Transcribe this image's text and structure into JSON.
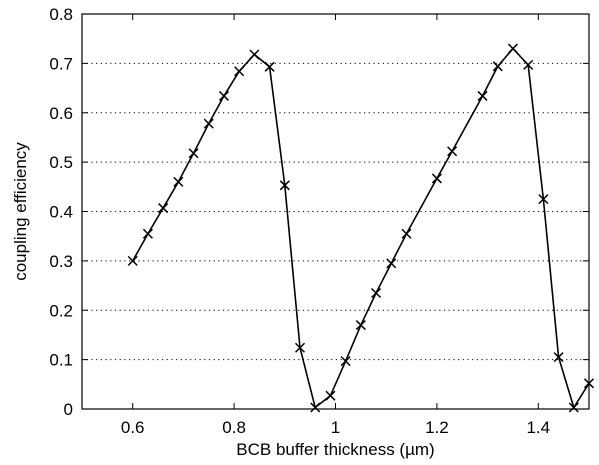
{
  "chart_data": {
    "type": "line",
    "title": "",
    "xlabel": "BCB buffer thickness (µm)",
    "ylabel": "coupling efficiency",
    "xlim": [
      0.5,
      1.5
    ],
    "ylim": [
      0,
      0.8
    ],
    "xticks": [
      0.6,
      0.8,
      1,
      1.2,
      1.4
    ],
    "xtick_labels": [
      "0.6",
      "0.8",
      "1",
      "1.2",
      "1.4"
    ],
    "yticks": [
      0,
      0.1,
      0.2,
      0.3,
      0.4,
      0.5,
      0.6,
      0.7,
      0.8
    ],
    "ytick_labels": [
      "0",
      "0.1",
      "0.2",
      "0.3",
      "0.4",
      "0.5",
      "0.6",
      "0.7",
      "0.8"
    ],
    "grid": "horizontal dotted",
    "marker": "x",
    "series": [
      {
        "x": [
          0.6,
          0.63,
          0.66,
          0.69,
          0.72,
          0.75,
          0.78,
          0.81,
          0.84,
          0.87,
          0.9,
          0.93,
          0.96,
          0.99,
          1.02,
          1.05,
          1.08,
          1.11,
          1.14,
          1.2,
          1.23,
          1.29,
          1.32,
          1.35,
          1.38,
          1.41,
          1.44,
          1.47,
          1.5
        ],
        "y": [
          0.3,
          0.355,
          0.407,
          0.46,
          0.518,
          0.578,
          0.634,
          0.684,
          0.718,
          0.693,
          0.453,
          0.124,
          0.003,
          0.027,
          0.097,
          0.17,
          0.235,
          0.295,
          0.355,
          0.467,
          0.522,
          0.634,
          0.694,
          0.73,
          0.697,
          0.425,
          0.105,
          0.003,
          0.052
        ]
      }
    ]
  }
}
